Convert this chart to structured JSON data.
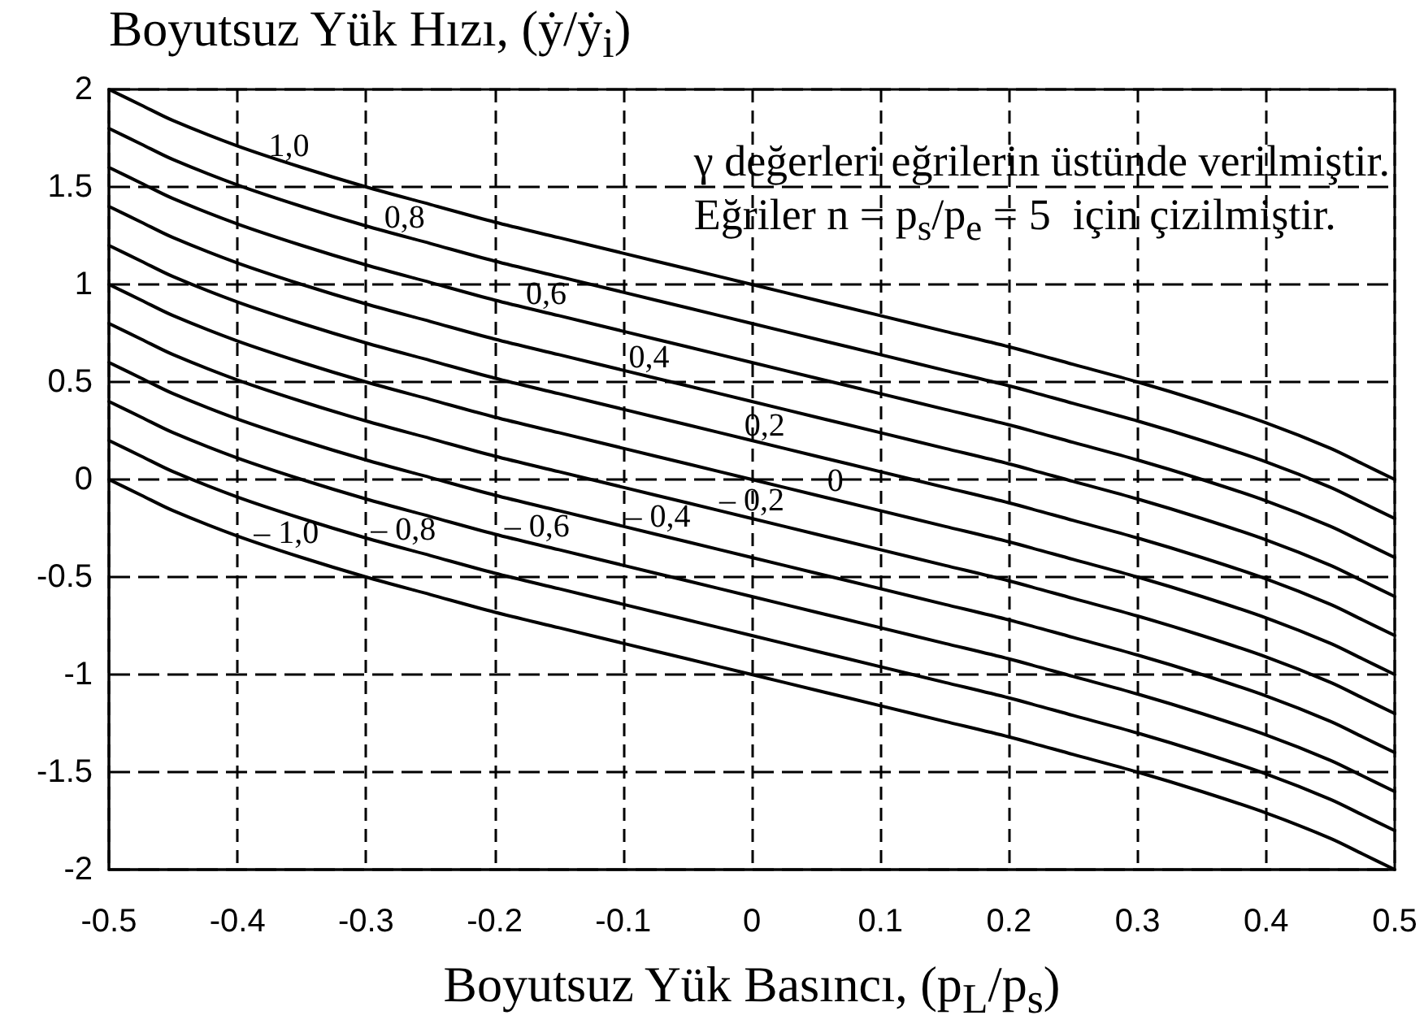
{
  "chart_data": {
    "type": "line",
    "xlabel": "Boyutsuz Yük Basıncı, (p$_{L}$/p$_{s}$)",
    "ylabel": "Boyutsuz Yük Hızı, (ẏ/ẏ$_{i}$)",
    "annotations": [
      "γ değerleri eğrilerin üstünde verilmiştir.",
      "Eğriler n = p$_{s}$/p$_{e}$ = 5  için çizilmiştir.",
      {
        "text": "1,0",
        "x": -0.36,
        "y": 1.62
      },
      {
        "text": "0,8",
        "x": -0.27,
        "y": 1.25
      },
      {
        "text": "0,6",
        "x": -0.16,
        "y": 0.86
      },
      {
        "text": "0,4",
        "x": -0.08,
        "y": 0.53
      },
      {
        "text": "0,2",
        "x": 0.01,
        "y": 0.18
      },
      {
        "text": "0",
        "x": 0.065,
        "y": -0.1
      },
      {
        "text": "– 0,2",
        "x": 0.0,
        "y": -0.2
      },
      {
        "text": "– 0,4",
        "x": -0.073,
        "y": -0.28
      },
      {
        "text": "– 0,6",
        "x": -0.167,
        "y": -0.33
      },
      {
        "text": "– 0,8",
        "x": -0.271,
        "y": -0.35
      },
      {
        "text": "– 1,0",
        "x": -0.362,
        "y": -0.37
      }
    ],
    "x": [
      -0.5,
      -0.475,
      -0.45,
      -0.4,
      -0.35,
      -0.3,
      -0.25,
      -0.2,
      -0.15,
      -0.1,
      -0.05,
      0,
      0.05,
      0.1,
      0.15,
      0.2,
      0.25,
      0.3,
      0.35,
      0.4,
      0.45,
      0.475,
      0.5
    ],
    "series": [
      {
        "color": "#000000",
        "values": [
          2,
          1.92,
          1.84,
          1.71,
          1.6,
          1.5,
          1.41,
          1.32,
          1.24,
          1.16,
          1.08,
          1,
          0.92,
          0.84,
          0.76,
          0.68,
          0.59,
          0.5,
          0.4,
          0.29,
          0.16,
          0.08,
          0
        ]
      },
      {
        "color": "#000000",
        "values": [
          1.8,
          1.72,
          1.64,
          1.51,
          1.4,
          1.3,
          1.21,
          1.12,
          1.04,
          0.96,
          0.88,
          0.8,
          0.72,
          0.64,
          0.56,
          0.48,
          0.39,
          0.3,
          0.2,
          0.09,
          -0.04,
          -0.12,
          -0.2
        ]
      },
      {
        "color": "#000000",
        "values": [
          1.6,
          1.52,
          1.44,
          1.31,
          1.2,
          1.1,
          1.01,
          0.92,
          0.84,
          0.76,
          0.68,
          0.6,
          0.52,
          0.44,
          0.36,
          0.28,
          0.19,
          0.1,
          0,
          -0.11,
          -0.24,
          -0.32,
          -0.4
        ]
      },
      {
        "color": "#000000",
        "values": [
          1.4,
          1.32,
          1.24,
          1.11,
          1,
          0.9,
          0.81,
          0.72,
          0.64,
          0.56,
          0.48,
          0.4,
          0.32,
          0.24,
          0.16,
          0.08,
          -0.01,
          -0.1,
          -0.2,
          -0.31,
          -0.44,
          -0.52,
          -0.6
        ]
      },
      {
        "color": "#000000",
        "values": [
          1.2,
          1.12,
          1.04,
          0.91,
          0.8,
          0.7,
          0.61,
          0.52,
          0.44,
          0.36,
          0.28,
          0.2,
          0.12,
          0.04,
          -0.04,
          -0.12,
          -0.21,
          -0.3,
          -0.4,
          -0.51,
          -0.64,
          -0.72,
          -0.8
        ]
      },
      {
        "color": "#000000",
        "values": [
          1,
          0.92,
          0.84,
          0.71,
          0.6,
          0.5,
          0.41,
          0.32,
          0.24,
          0.16,
          0.08,
          0,
          -0.08,
          -0.16,
          -0.24,
          -0.32,
          -0.41,
          -0.5,
          -0.6,
          -0.71,
          -0.84,
          -0.92,
          -1
        ]
      },
      {
        "color": "#000000",
        "values": [
          0.8,
          0.72,
          0.64,
          0.51,
          0.4,
          0.3,
          0.21,
          0.12,
          0.04,
          -0.04,
          -0.12,
          -0.2,
          -0.28,
          -0.36,
          -0.44,
          -0.52,
          -0.61,
          -0.7,
          -0.8,
          -0.91,
          -1.04,
          -1.12,
          -1.2
        ]
      },
      {
        "color": "#000000",
        "values": [
          0.6,
          0.52,
          0.44,
          0.31,
          0.2,
          0.1,
          0.01,
          -0.08,
          -0.16,
          -0.24,
          -0.32,
          -0.4,
          -0.48,
          -0.56,
          -0.64,
          -0.72,
          -0.81,
          -0.9,
          -1,
          -1.11,
          -1.24,
          -1.32,
          -1.4
        ]
      },
      {
        "color": "#000000",
        "values": [
          0.4,
          0.32,
          0.24,
          0.11,
          0,
          -0.1,
          -0.19,
          -0.28,
          -0.36,
          -0.44,
          -0.52,
          -0.6,
          -0.68,
          -0.76,
          -0.84,
          -0.92,
          -1.01,
          -1.1,
          -1.2,
          -1.31,
          -1.44,
          -1.52,
          -1.6
        ]
      },
      {
        "color": "#000000",
        "values": [
          0.2,
          0.12,
          0.04,
          -0.09,
          -0.2,
          -0.3,
          -0.39,
          -0.48,
          -0.56,
          -0.64,
          -0.72,
          -0.8,
          -0.88,
          -0.96,
          -1.04,
          -1.12,
          -1.21,
          -1.3,
          -1.4,
          -1.51,
          -1.64,
          -1.72,
          -1.8
        ]
      },
      {
        "color": "#000000",
        "values": [
          0,
          -0.08,
          -0.16,
          -0.29,
          -0.4,
          -0.5,
          -0.59,
          -0.68,
          -0.76,
          -0.84,
          -0.92,
          -1,
          -1.08,
          -1.16,
          -1.24,
          -1.32,
          -1.41,
          -1.5,
          -1.6,
          -1.71,
          -1.84,
          -1.92,
          -2
        ]
      }
    ],
    "xlim": [
      -0.5,
      0.5
    ],
    "xticks": [
      -0.5,
      -0.4,
      -0.3,
      -0.2,
      -0.1,
      0,
      0.1,
      0.2,
      0.3,
      0.4,
      0.5
    ],
    "ylim": [
      -2,
      2
    ],
    "yticks": [
      -2,
      -1.5,
      -1,
      -0.5,
      0,
      0.5,
      1,
      1.5,
      2
    ],
    "grid": true
  }
}
